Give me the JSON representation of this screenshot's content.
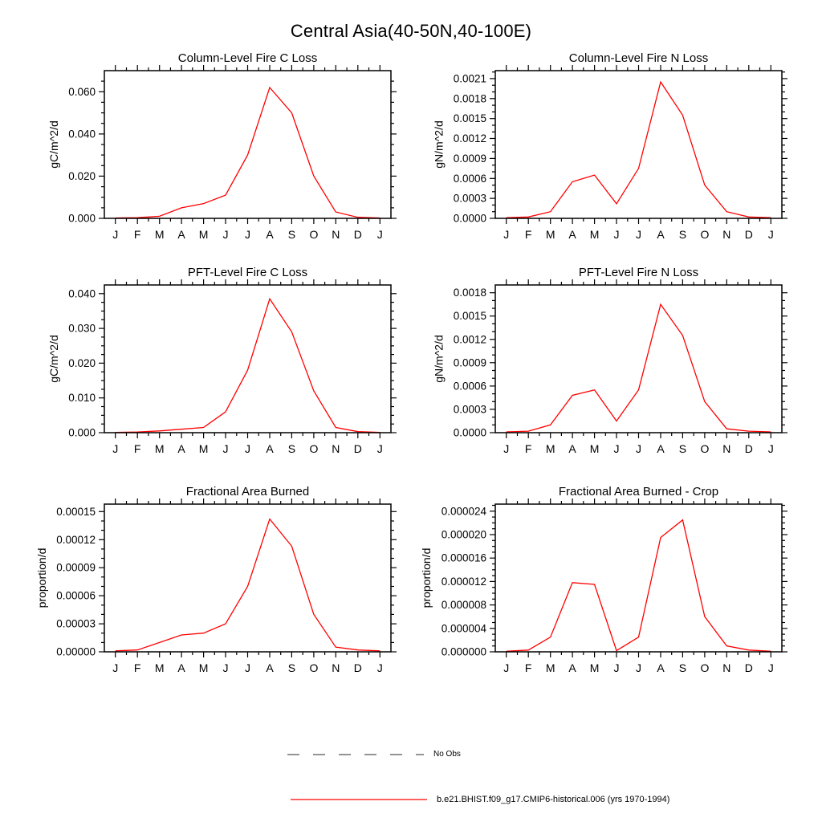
{
  "page_title": "Central Asia(40-50N,40-100E)",
  "legend": {
    "no_obs": {
      "label": "No Obs",
      "color": "#555555",
      "style": "dashed"
    },
    "model": {
      "label": "b.e21.BHIST.f09_g17.CMIP6-historical.006 (yrs 1970-1994)",
      "color": "#ff0000",
      "style": "solid"
    }
  },
  "chart_data": [
    {
      "type": "line",
      "title": "Column-Level Fire C Loss",
      "xlabel": "",
      "ylabel": "gC/m^2/d",
      "x_tick_labels": [
        "J",
        "F",
        "M",
        "A",
        "M",
        "J",
        "J",
        "A",
        "S",
        "O",
        "N",
        "D",
        "J"
      ],
      "values": [
        0.0002,
        0.0003,
        0.001,
        0.005,
        0.007,
        0.011,
        0.03,
        0.062,
        0.05,
        0.02,
        0.003,
        0.0005,
        0.0002
      ],
      "y_ticks": [
        0,
        0.02,
        0.04,
        0.06
      ],
      "y_tick_labels": [
        "0.000",
        "0.020",
        "0.040",
        "0.060"
      ],
      "ylim": [
        0,
        0.07
      ],
      "y_minor_div": 4,
      "line_color": "#ff0000"
    },
    {
      "type": "line",
      "title": "Column-Level Fire N Loss",
      "xlabel": "",
      "ylabel": "gN/m^2/d",
      "x_tick_labels": [
        "J",
        "F",
        "M",
        "A",
        "M",
        "J",
        "J",
        "A",
        "S",
        "O",
        "N",
        "D",
        "J"
      ],
      "values": [
        1e-05,
        2e-05,
        0.0001,
        0.00055,
        0.00065,
        0.00022,
        0.00075,
        0.00205,
        0.00155,
        0.0005,
        0.0001,
        2e-05,
        1e-05
      ],
      "y_ticks": [
        0,
        0.0003,
        0.0006,
        0.0009,
        0.0012,
        0.0015,
        0.0018,
        0.0021
      ],
      "y_tick_labels": [
        "0.0000",
        "0.0003",
        "0.0006",
        "0.0009",
        "0.0012",
        "0.0015",
        "0.0018",
        "0.0021"
      ],
      "ylim": [
        0,
        0.00222
      ],
      "y_minor_div": 3,
      "line_color": "#ff0000"
    },
    {
      "type": "line",
      "title": "PFT-Level Fire C Loss",
      "xlabel": "",
      "ylabel": "gC/m^2/d",
      "x_tick_labels": [
        "J",
        "F",
        "M",
        "A",
        "M",
        "J",
        "J",
        "A",
        "S",
        "O",
        "N",
        "D",
        "J"
      ],
      "values": [
        0.0001,
        0.0002,
        0.0005,
        0.001,
        0.0015,
        0.006,
        0.018,
        0.0385,
        0.029,
        0.012,
        0.0015,
        0.0003,
        0.0001
      ],
      "y_ticks": [
        0,
        0.01,
        0.02,
        0.03,
        0.04
      ],
      "y_tick_labels": [
        "0.000",
        "0.010",
        "0.020",
        "0.030",
        "0.040"
      ],
      "ylim": [
        0,
        0.0425
      ],
      "y_minor_div": 4,
      "line_color": "#ff0000"
    },
    {
      "type": "line",
      "title": "PFT-Level Fire N Loss",
      "xlabel": "",
      "ylabel": "gN/m^2/d",
      "x_tick_labels": [
        "J",
        "F",
        "M",
        "A",
        "M",
        "J",
        "J",
        "A",
        "S",
        "O",
        "N",
        "D",
        "J"
      ],
      "values": [
        1e-05,
        2e-05,
        0.0001,
        0.00048,
        0.00055,
        0.00015,
        0.00055,
        0.00165,
        0.00125,
        0.0004,
        5e-05,
        2e-05,
        1e-05
      ],
      "y_ticks": [
        0,
        0.0003,
        0.0006,
        0.0009,
        0.0012,
        0.0015,
        0.0018
      ],
      "y_tick_labels": [
        "0.0000",
        "0.0003",
        "0.0006",
        "0.0009",
        "0.0012",
        "0.0015",
        "0.0018"
      ],
      "ylim": [
        0,
        0.0019
      ],
      "y_minor_div": 3,
      "line_color": "#ff0000"
    },
    {
      "type": "line",
      "title": "Fractional Area Burned",
      "xlabel": "",
      "ylabel": "proportion/d",
      "x_tick_labels": [
        "J",
        "F",
        "M",
        "A",
        "M",
        "J",
        "J",
        "A",
        "S",
        "O",
        "N",
        "D",
        "J"
      ],
      "values": [
        1e-06,
        2e-06,
        1e-05,
        1.8e-05,
        2e-05,
        3e-05,
        7e-05,
        0.000142,
        0.000113,
        4e-05,
        5e-06,
        2e-06,
        1e-06
      ],
      "y_ticks": [
        0,
        3e-05,
        6e-05,
        9e-05,
        0.00012,
        0.00015
      ],
      "y_tick_labels": [
        "0.00000",
        "0.00003",
        "0.00006",
        "0.00009",
        "0.00012",
        "0.00015"
      ],
      "ylim": [
        0,
        0.000158
      ],
      "y_minor_div": 3,
      "line_color": "#ff0000"
    },
    {
      "type": "line",
      "title": "Fractional Area Burned - Crop",
      "xlabel": "",
      "ylabel": "proportion/d",
      "x_tick_labels": [
        "J",
        "F",
        "M",
        "A",
        "M",
        "J",
        "J",
        "A",
        "S",
        "O",
        "N",
        "D",
        "J"
      ],
      "values": [
        1e-07,
        3e-07,
        2.5e-06,
        1.18e-05,
        1.15e-05,
        2e-07,
        2.5e-06,
        1.95e-05,
        2.25e-05,
        6e-06,
        1e-06,
        3e-07,
        1e-07
      ],
      "y_ticks": [
        0,
        4e-06,
        8e-06,
        1.2e-05,
        1.6e-05,
        2e-05,
        2.4e-05
      ],
      "y_tick_labels": [
        "0.000000",
        "0.000004",
        "0.000008",
        "0.000012",
        "0.000016",
        "0.000020",
        "0.000024"
      ],
      "ylim": [
        0,
        2.52e-05
      ],
      "y_minor_div": 4,
      "line_color": "#ff0000"
    }
  ]
}
